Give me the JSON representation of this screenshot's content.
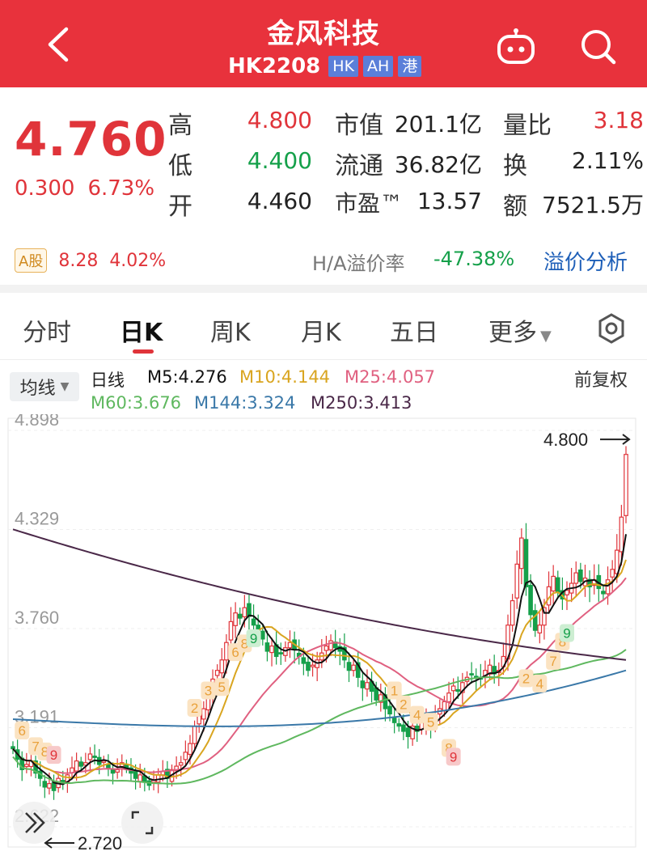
{
  "header": {
    "title": "金风科技",
    "code": "HK2208",
    "tags": [
      "HK",
      "AH",
      "港"
    ]
  },
  "quote": {
    "price": "4.760",
    "change": "0.300",
    "change_pct": "6.73%",
    "high_label": "高",
    "high": "4.800",
    "low_label": "低",
    "low": "4.400",
    "open_label": "开",
    "open": "4.460",
    "mktcap_label": "市值",
    "mktcap": "201.1亿",
    "float_label": "流通",
    "float": "36.82亿",
    "pe_label": "市盈™",
    "pe": "13.57",
    "vol_ratio_label": "量比",
    "vol_ratio": "3.18",
    "turnover_label": "换",
    "turnover": "2.11%",
    "amount_label": "额",
    "amount": "7521.5万"
  },
  "ashare": {
    "badge": "A股",
    "price": "8.28",
    "pct": "4.02%",
    "premium_label": "H/A溢价率",
    "premium": "-47.38%",
    "analysis_link": "溢价分析"
  },
  "tabs": [
    "分时",
    "日K",
    "周K",
    "月K",
    "五日",
    "更多"
  ],
  "ma": {
    "selector": "均线",
    "period": "日线",
    "m5": "M5:4.276",
    "m10": "M10:4.144",
    "m25": "M25:4.057",
    "m60": "M60:3.676",
    "m144": "M144:3.324",
    "m250": "M250:3.413",
    "adjust": "前复权",
    "colors": {
      "m5": "#111111",
      "m10": "#d9a520",
      "m25": "#e06080",
      "m60": "#5fb85f",
      "m144": "#3a78a8",
      "m250": "#4a2848"
    }
  },
  "chart_data": {
    "type": "candlestick",
    "y_ticks": [
      "4.898",
      "4.329",
      "3.760",
      "3.191",
      "2.622"
    ],
    "ylim": [
      2.622,
      4.898
    ],
    "high_marker": "4.800",
    "low_marker": "2.720",
    "closes": [
      3.07,
      3.01,
      2.95,
      2.98,
      3.0,
      2.93,
      2.9,
      2.85,
      2.87,
      2.83,
      2.9,
      2.88,
      2.92,
      2.96,
      3.0,
      2.97,
      2.99,
      3.04,
      3.02,
      2.98,
      3.0,
      2.96,
      2.93,
      2.95,
      2.99,
      2.96,
      2.93,
      2.9,
      2.92,
      2.88,
      2.86,
      2.89,
      2.92,
      2.94,
      2.9,
      2.95,
      2.97,
      2.99,
      3.05,
      3.1,
      3.2,
      3.26,
      3.3,
      3.38,
      3.47,
      3.52,
      3.58,
      3.68,
      3.8,
      3.85,
      3.82,
      3.88,
      3.83,
      3.78,
      3.73,
      3.7,
      3.63,
      3.66,
      3.6,
      3.62,
      3.65,
      3.68,
      3.64,
      3.6,
      3.56,
      3.52,
      3.55,
      3.58,
      3.62,
      3.66,
      3.69,
      3.65,
      3.63,
      3.58,
      3.52,
      3.55,
      3.48,
      3.42,
      3.45,
      3.4,
      3.35,
      3.38,
      3.3,
      3.27,
      3.22,
      3.2,
      3.17,
      3.14,
      3.2,
      3.17,
      3.22,
      3.24,
      3.2,
      3.25,
      3.3,
      3.34,
      3.39,
      3.43,
      3.4,
      3.45,
      3.48,
      3.5,
      3.48,
      3.47,
      3.52,
      3.55,
      3.5,
      3.52,
      3.6,
      3.78,
      3.92,
      4.13,
      4.28,
      4.0,
      3.84,
      3.75,
      3.78,
      3.88,
      4.0,
      4.06,
      3.97,
      3.93,
      3.98,
      4.02,
      4.08,
      4.03,
      4.05,
      4.0,
      4.04,
      3.99,
      3.96,
      4.04,
      4.1,
      4.21,
      4.4,
      4.76
    ],
    "series_markers": [
      "6",
      "7",
      "8",
      "9",
      "1",
      "2",
      "3",
      "4",
      "5"
    ]
  }
}
